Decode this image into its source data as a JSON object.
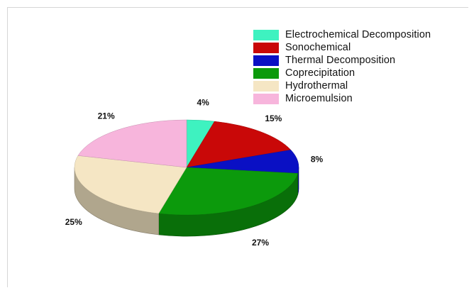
{
  "chart_data": {
    "type": "pie",
    "style": "3d",
    "categories": [
      "Electrochemical Decomposition",
      "Sonochemical",
      "Thermal Decomposition",
      "Coprecipitation",
      "Hydrothermal",
      "Microemulsion"
    ],
    "values": [
      4,
      15,
      8,
      27,
      25,
      21
    ],
    "labels": [
      "4%",
      "15%",
      "8%",
      "27%",
      "25%",
      "21%"
    ],
    "colors": [
      "#3ef2c0",
      "#c90808",
      "#0a10c4",
      "#0c9a0c",
      "#f5e6c4",
      "#f7b5dc"
    ],
    "legend_position": "top-right"
  }
}
